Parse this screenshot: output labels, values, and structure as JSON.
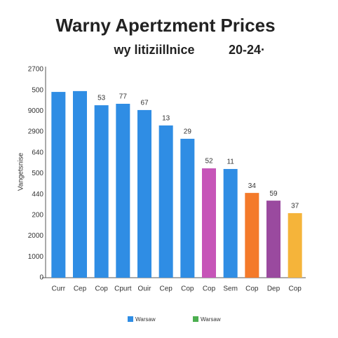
{
  "chart_data": {
    "type": "bar",
    "title": "Warny Apertzment Prices",
    "subtitle": "wy litiziillnice",
    "subtitle_right": "20-24·",
    "y_axis_label": "Vangetsnise",
    "y_labels": [
      "0",
      "1000",
      "2000",
      "200",
      "440",
      "500",
      "640",
      "2900",
      "9000",
      "500",
      "2700"
    ],
    "ylim": [
      0,
      10
    ],
    "categories": [
      "Curr",
      "Cep",
      "Cop",
      "Cpurt",
      "Ouir",
      "Cep",
      "Cop",
      "Cop",
      "Sem",
      "Cop",
      "Dep",
      "Cop"
    ],
    "values": [
      8.92,
      8.96,
      8.28,
      8.35,
      8.05,
      7.31,
      6.67,
      5.25,
      5.22,
      4.07,
      3.7,
      3.1
    ],
    "annotations": [
      null,
      null,
      "53",
      "77",
      "67",
      "13",
      "29",
      "52",
      "11",
      "34",
      "59",
      "37"
    ],
    "colors": [
      "#2f8de4",
      "#2f8de4",
      "#2f8de4",
      "#2f8de4",
      "#2f8de4",
      "#2f8de4",
      "#2f8de4",
      "#c655b8",
      "#2f8de4",
      "#f47a2a",
      "#9a4a9f",
      "#f5b43a"
    ],
    "legend": [
      {
        "name": "Warsaw",
        "color": "#2f8de4"
      },
      {
        "name": "Warsaw",
        "color": "#4caf50"
      }
    ]
  }
}
